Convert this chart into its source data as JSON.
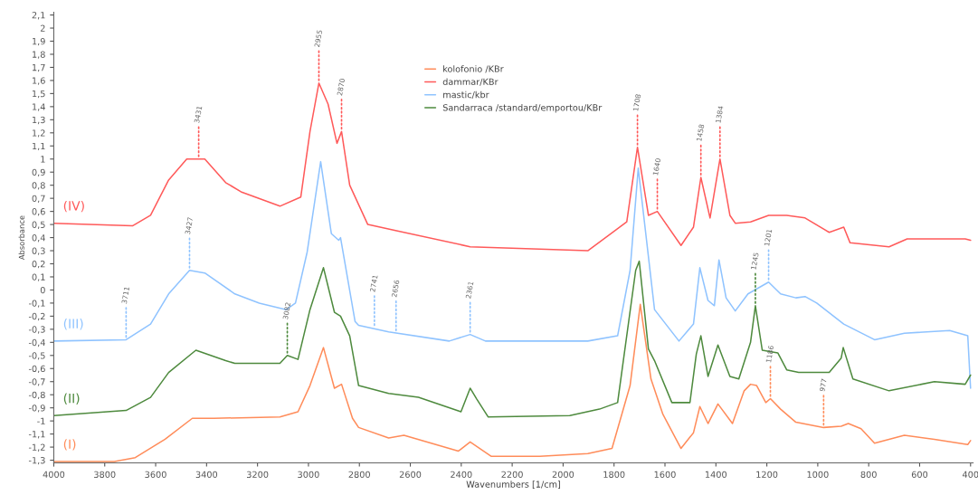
{
  "chart_data": {
    "type": "line",
    "xlabel": "Wavenumbers [1/cm]",
    "ylabel": "Absorbance",
    "xlim": [
      4000,
      390
    ],
    "xticks": [
      4000,
      3800,
      3600,
      3400,
      3200,
      3000,
      2800,
      2600,
      2400,
      2200,
      2000,
      1800,
      1600,
      1400,
      1200,
      1000,
      800,
      600,
      400
    ],
    "ylim": [
      -1.32,
      2.12
    ],
    "yticks": [
      {
        "value": -1.3,
        "label": "-1,3"
      },
      {
        "value": -1.2,
        "label": "-1,2"
      },
      {
        "value": -1.1,
        "label": "-1,1"
      },
      {
        "value": -1,
        "label": "-1"
      },
      {
        "value": -0.9,
        "label": "-0,9"
      },
      {
        "value": -0.8,
        "label": "-0,8"
      },
      {
        "value": -0.7,
        "label": "-0,7"
      },
      {
        "value": -0.6,
        "label": "-0,6"
      },
      {
        "value": -0.5,
        "label": "-0,5"
      },
      {
        "value": -0.4,
        "label": "-0,4"
      },
      {
        "value": -0.3,
        "label": "-0,3"
      },
      {
        "value": -0.2,
        "label": "-0,2"
      },
      {
        "value": -0.1,
        "label": "-0,1"
      },
      {
        "value": 0,
        "label": "0"
      },
      {
        "value": 0.1,
        "label": "0,1"
      },
      {
        "value": 0.2,
        "label": "0,2"
      },
      {
        "value": 0.3,
        "label": "0,3"
      },
      {
        "value": 0.4,
        "label": "0,4"
      },
      {
        "value": 0.5,
        "label": "0,5"
      },
      {
        "value": 0.6,
        "label": "0,6"
      },
      {
        "value": 0.7,
        "label": "0,7"
      },
      {
        "value": 0.8,
        "label": "0,8"
      },
      {
        "value": 0.9,
        "label": "0,9"
      },
      {
        "value": 1,
        "label": "1"
      },
      {
        "value": 1.1,
        "label": "1,1"
      },
      {
        "value": 1.2,
        "label": "1,2"
      },
      {
        "value": 1.3,
        "label": "1,3"
      },
      {
        "value": 1.4,
        "label": "1,4"
      },
      {
        "value": 1.5,
        "label": "1,5"
      },
      {
        "value": 1.6,
        "label": "1,6"
      },
      {
        "value": 1.7,
        "label": "1,7"
      },
      {
        "value": 1.8,
        "label": "1,8"
      },
      {
        "value": 1.9,
        "label": "1,9"
      },
      {
        "value": 2,
        "label": "2"
      },
      {
        "value": 2.1,
        "label": "2,1"
      }
    ],
    "grid": false,
    "legend": "top",
    "marker": "none",
    "line_style": "solid",
    "series": [
      {
        "name": "kolofonio /KBr",
        "color": "#ff8c5a",
        "x": [
          4000,
          3762,
          3680,
          3563,
          3456,
          3371,
          3112,
          3041,
          2994,
          2941,
          2898,
          2870,
          2827,
          2803,
          2685,
          2625,
          2411,
          2365,
          2283,
          2092,
          1903,
          1808,
          1737,
          1697,
          1655,
          1608,
          1537,
          1488,
          1463,
          1431,
          1392,
          1335,
          1289,
          1264,
          1240,
          1204,
          1186,
          1146,
          1086,
          977,
          908,
          880,
          830,
          777,
          660,
          542,
          411,
          400
        ],
        "values": [
          -1.31,
          -1.31,
          -1.28,
          -1.14,
          -0.98,
          -0.98,
          -0.97,
          -0.93,
          -0.73,
          -0.44,
          -0.75,
          -0.72,
          -0.98,
          -1.05,
          -1.13,
          -1.11,
          -1.23,
          -1.16,
          -1.27,
          -1.27,
          -1.25,
          -1.21,
          -0.73,
          -0.11,
          -0.68,
          -0.95,
          -1.21,
          -1.09,
          -0.89,
          -1.02,
          -0.87,
          -1.02,
          -0.77,
          -0.72,
          -0.73,
          -0.86,
          -0.83,
          -0.91,
          -1.01,
          -1.05,
          -1.04,
          -1.02,
          -1.06,
          -1.17,
          -1.11,
          -1.14,
          -1.18,
          -1.15
        ]
      },
      {
        "name": "dammar/KBr",
        "color": "#ff5a5a",
        "x": [
          4000,
          3691,
          3620,
          3549,
          3478,
          3407,
          3325,
          3265,
          3112,
          3030,
          2994,
          2959,
          2923,
          2888,
          2870,
          2838,
          2767,
          2365,
          1903,
          1750,
          1708,
          1665,
          1630,
          1537,
          1488,
          1459,
          1423,
          1384,
          1345,
          1324,
          1264,
          1193,
          1122,
          1050,
          955,
          898,
          873,
          720,
          649,
          421,
          400
        ],
        "values": [
          0.51,
          0.49,
          0.57,
          0.84,
          1.0,
          1.0,
          0.82,
          0.75,
          0.64,
          0.71,
          1.21,
          1.58,
          1.42,
          1.12,
          1.21,
          0.8,
          0.5,
          0.33,
          0.3,
          0.52,
          1.09,
          0.57,
          0.6,
          0.34,
          0.48,
          0.86,
          0.55,
          1.0,
          0.57,
          0.51,
          0.52,
          0.57,
          0.57,
          0.55,
          0.44,
          0.48,
          0.36,
          0.33,
          0.39,
          0.39,
          0.38
        ]
      },
      {
        "name": "mastic/kbr",
        "color": "#8fc3ff",
        "x": [
          4000,
          3716,
          3620,
          3549,
          3467,
          3407,
          3289,
          3193,
          3087,
          3051,
          3005,
          2952,
          2910,
          2881,
          2874,
          2817,
          2803,
          2685,
          2447,
          2365,
          2305,
          1903,
          1786,
          1737,
          1705,
          1641,
          1545,
          1488,
          1463,
          1431,
          1406,
          1388,
          1360,
          1324,
          1274,
          1193,
          1146,
          1086,
          1050,
          1004,
          898,
          777,
          660,
          482,
          411,
          400
        ],
        "values": [
          -0.39,
          -0.38,
          -0.26,
          -0.03,
          0.15,
          0.13,
          -0.03,
          -0.1,
          -0.15,
          -0.1,
          0.29,
          0.98,
          0.43,
          0.38,
          0.4,
          -0.24,
          -0.27,
          -0.32,
          -0.39,
          -0.34,
          -0.39,
          -0.39,
          -0.35,
          0.15,
          0.93,
          -0.15,
          -0.39,
          -0.26,
          0.17,
          -0.08,
          -0.12,
          0.23,
          -0.06,
          -0.16,
          -0.03,
          0.06,
          -0.03,
          -0.06,
          -0.05,
          -0.1,
          -0.26,
          -0.38,
          -0.33,
          -0.31,
          -0.35,
          -0.75
        ]
      },
      {
        "name": "Sandarraca /standard/emportou/KBr",
        "color": "#4e8a3e",
        "x": [
          4000,
          3716,
          3620,
          3549,
          3442,
          3325,
          3289,
          3112,
          3083,
          3041,
          2994,
          2941,
          2898,
          2874,
          2838,
          2803,
          2685,
          2568,
          2401,
          2365,
          2340,
          2294,
          1974,
          1857,
          1786,
          1715,
          1701,
          1665,
          1641,
          1573,
          1502,
          1477,
          1459,
          1431,
          1392,
          1345,
          1310,
          1264,
          1245,
          1218,
          1157,
          1122,
          1075,
          955,
          908,
          900,
          862,
          720,
          542,
          421,
          400
        ],
        "values": [
          -0.96,
          -0.92,
          -0.82,
          -0.63,
          -0.46,
          -0.54,
          -0.56,
          -0.56,
          -0.5,
          -0.53,
          -0.15,
          0.17,
          -0.17,
          -0.2,
          -0.35,
          -0.73,
          -0.79,
          -0.82,
          -0.93,
          -0.75,
          -0.83,
          -0.97,
          -0.96,
          -0.91,
          -0.86,
          0.15,
          0.22,
          -0.45,
          -0.54,
          -0.86,
          -0.86,
          -0.49,
          -0.35,
          -0.66,
          -0.42,
          -0.66,
          -0.68,
          -0.4,
          -0.12,
          -0.46,
          -0.48,
          -0.61,
          -0.63,
          -0.63,
          -0.52,
          -0.44,
          -0.68,
          -0.77,
          -0.7,
          -0.72,
          -0.65
        ]
      }
    ],
    "annotations": [
      "(IV)",
      "(III)",
      "(II)",
      "(I)",
      {
        "text": "3431",
        "x": 3431,
        "y": 1.0
      },
      {
        "text": "2955",
        "x": 2959,
        "y": 1.58
      },
      {
        "text": "2870",
        "x": 2870,
        "y": 1.21
      },
      {
        "text": "1708",
        "x": 1708,
        "y": 1.09
      },
      {
        "text": "1640",
        "x": 1630,
        "y": 0.6
      },
      {
        "text": "1458",
        "x": 1459,
        "y": 0.86
      },
      {
        "text": "1384",
        "x": 1384,
        "y": 1.0
      },
      {
        "text": "3711",
        "x": 3716,
        "y": -0.38
      },
      {
        "text": "3427",
        "x": 3467,
        "y": 0.15
      },
      {
        "text": "2741",
        "x": 2741,
        "y": -0.29
      },
      {
        "text": "2656",
        "x": 2656,
        "y": -0.33
      },
      {
        "text": "2361",
        "x": 2365,
        "y": -0.34
      },
      {
        "text": "1201",
        "x": 1193,
        "y": 0.06
      },
      {
        "text": "3082",
        "x": 3083,
        "y": -0.5
      },
      {
        "text": "1245",
        "x": 1245,
        "y": -0.12
      },
      {
        "text": "1186",
        "x": 1186,
        "y": -0.83
      },
      {
        "text": "977",
        "x": 977,
        "y": -1.05
      }
    ]
  }
}
